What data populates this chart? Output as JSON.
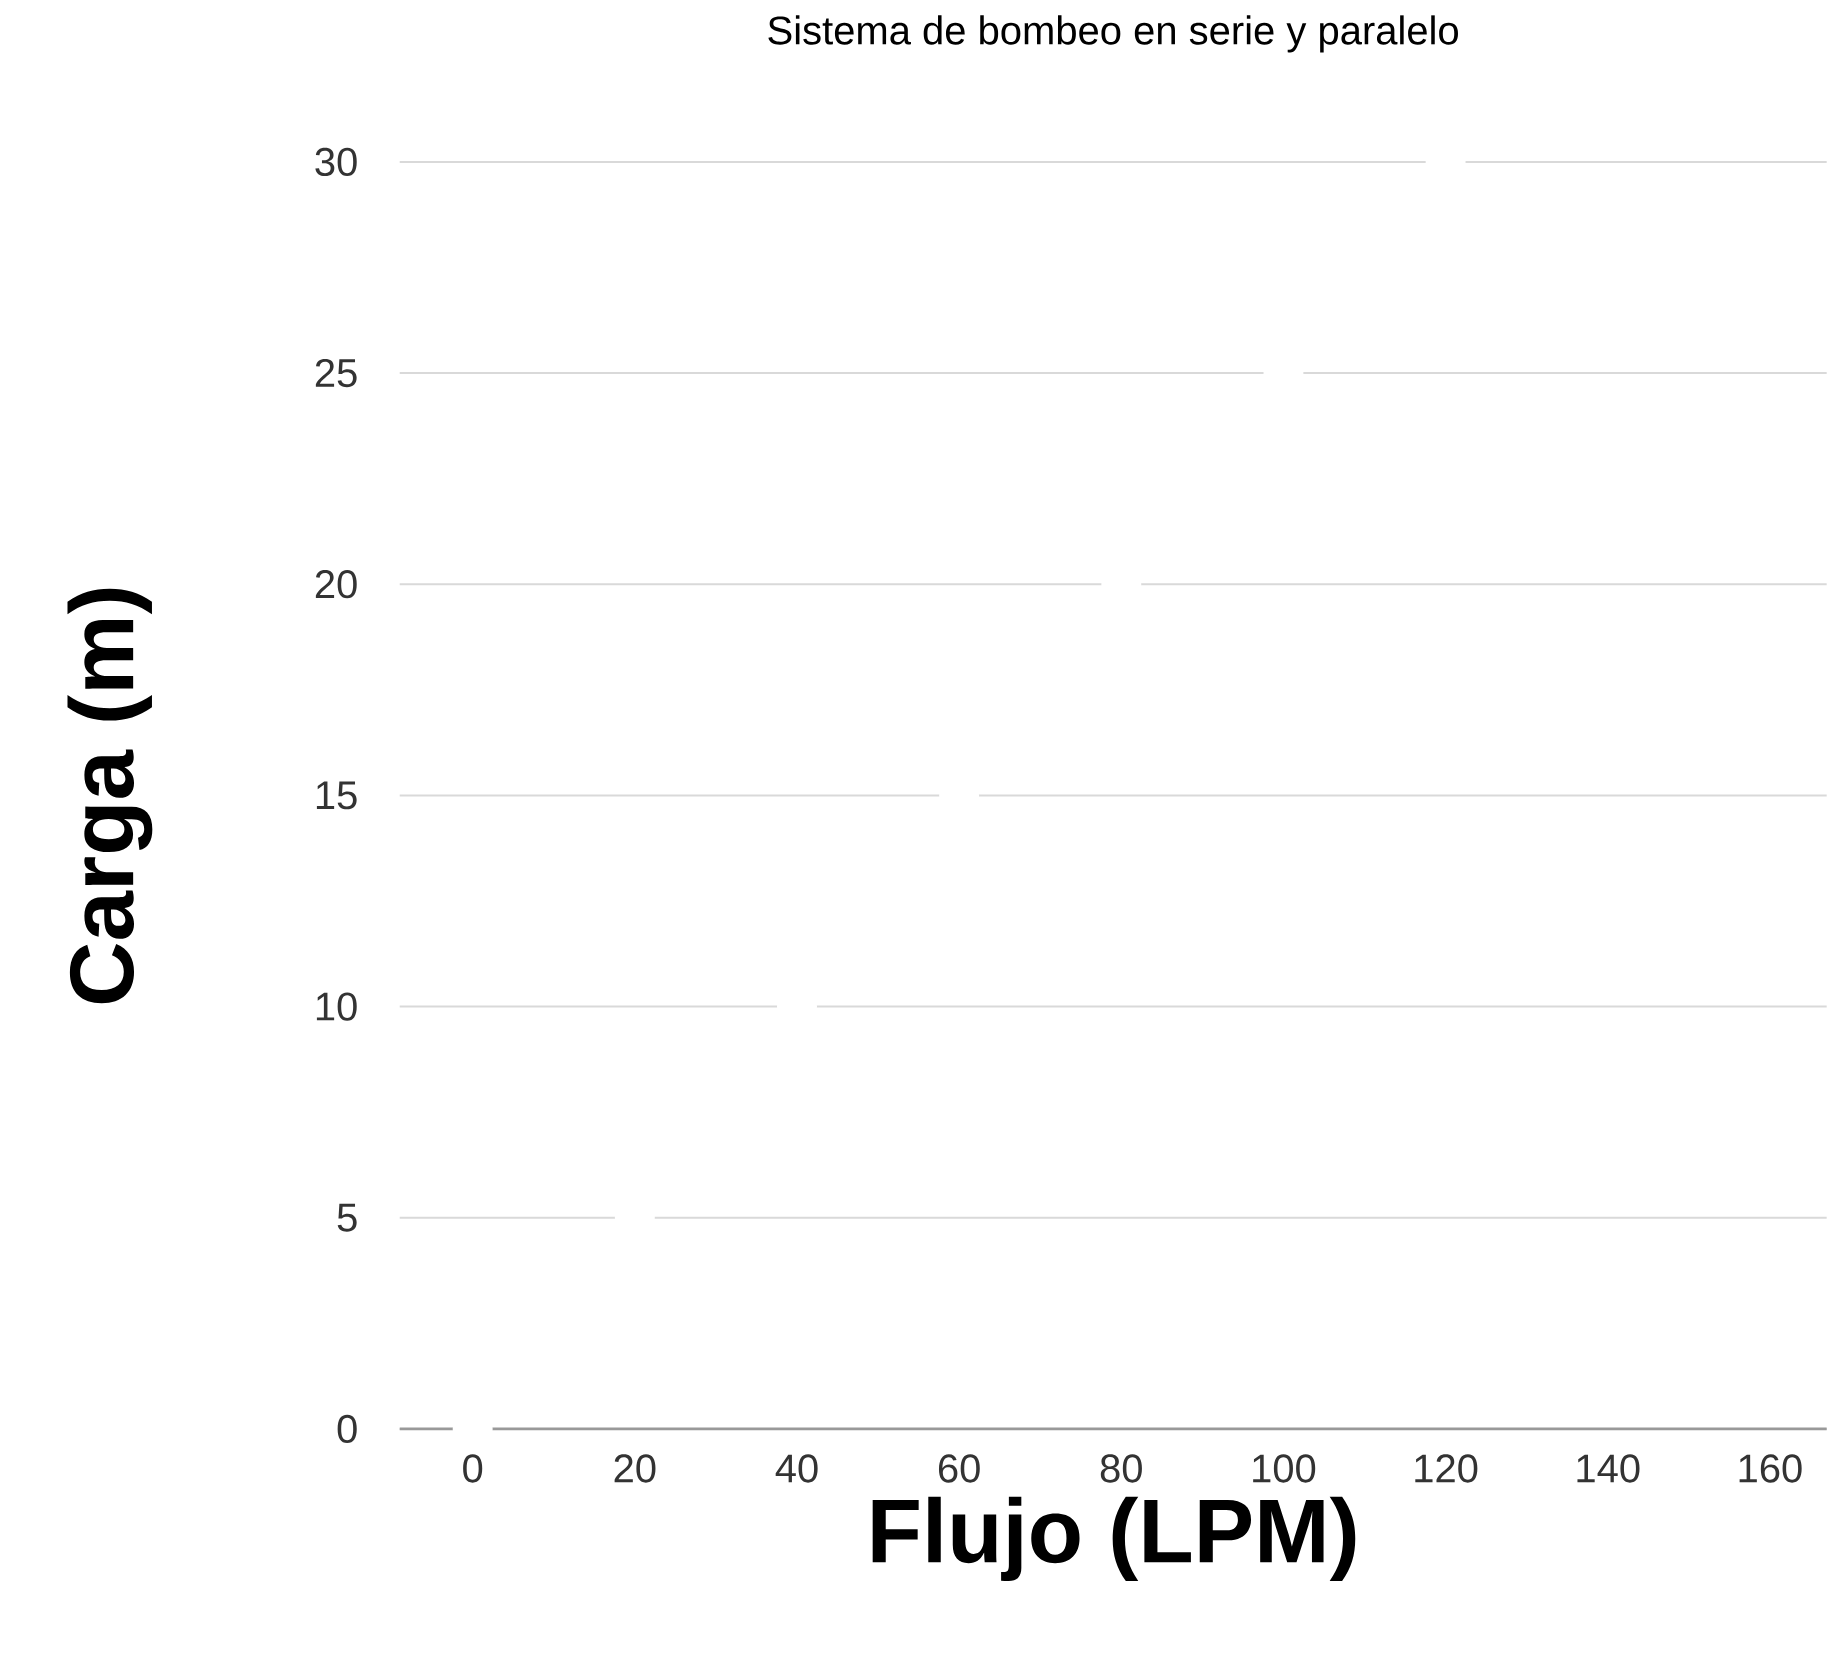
{
  "chart_data": {
    "type": "scatter",
    "title": "Sistema de bombeo en serie y paralelo",
    "xlabel": "Flujo (LPM)",
    "ylabel": "Carga (m)",
    "x": [
      0,
      20,
      40,
      60,
      80,
      100,
      120
    ],
    "series": [
      {
        "color": "#ffffff",
        "values": [
          0,
          5,
          10,
          15,
          20,
          25,
          30
        ]
      }
    ],
    "xlim": [
      -9,
      167
    ],
    "ylim": [
      0,
      30
    ],
    "xticks": [
      0,
      20,
      40,
      60,
      80,
      100,
      120,
      140,
      160
    ],
    "yticks": [
      0,
      5,
      10,
      15,
      20,
      25,
      30
    ],
    "grid": "y"
  }
}
